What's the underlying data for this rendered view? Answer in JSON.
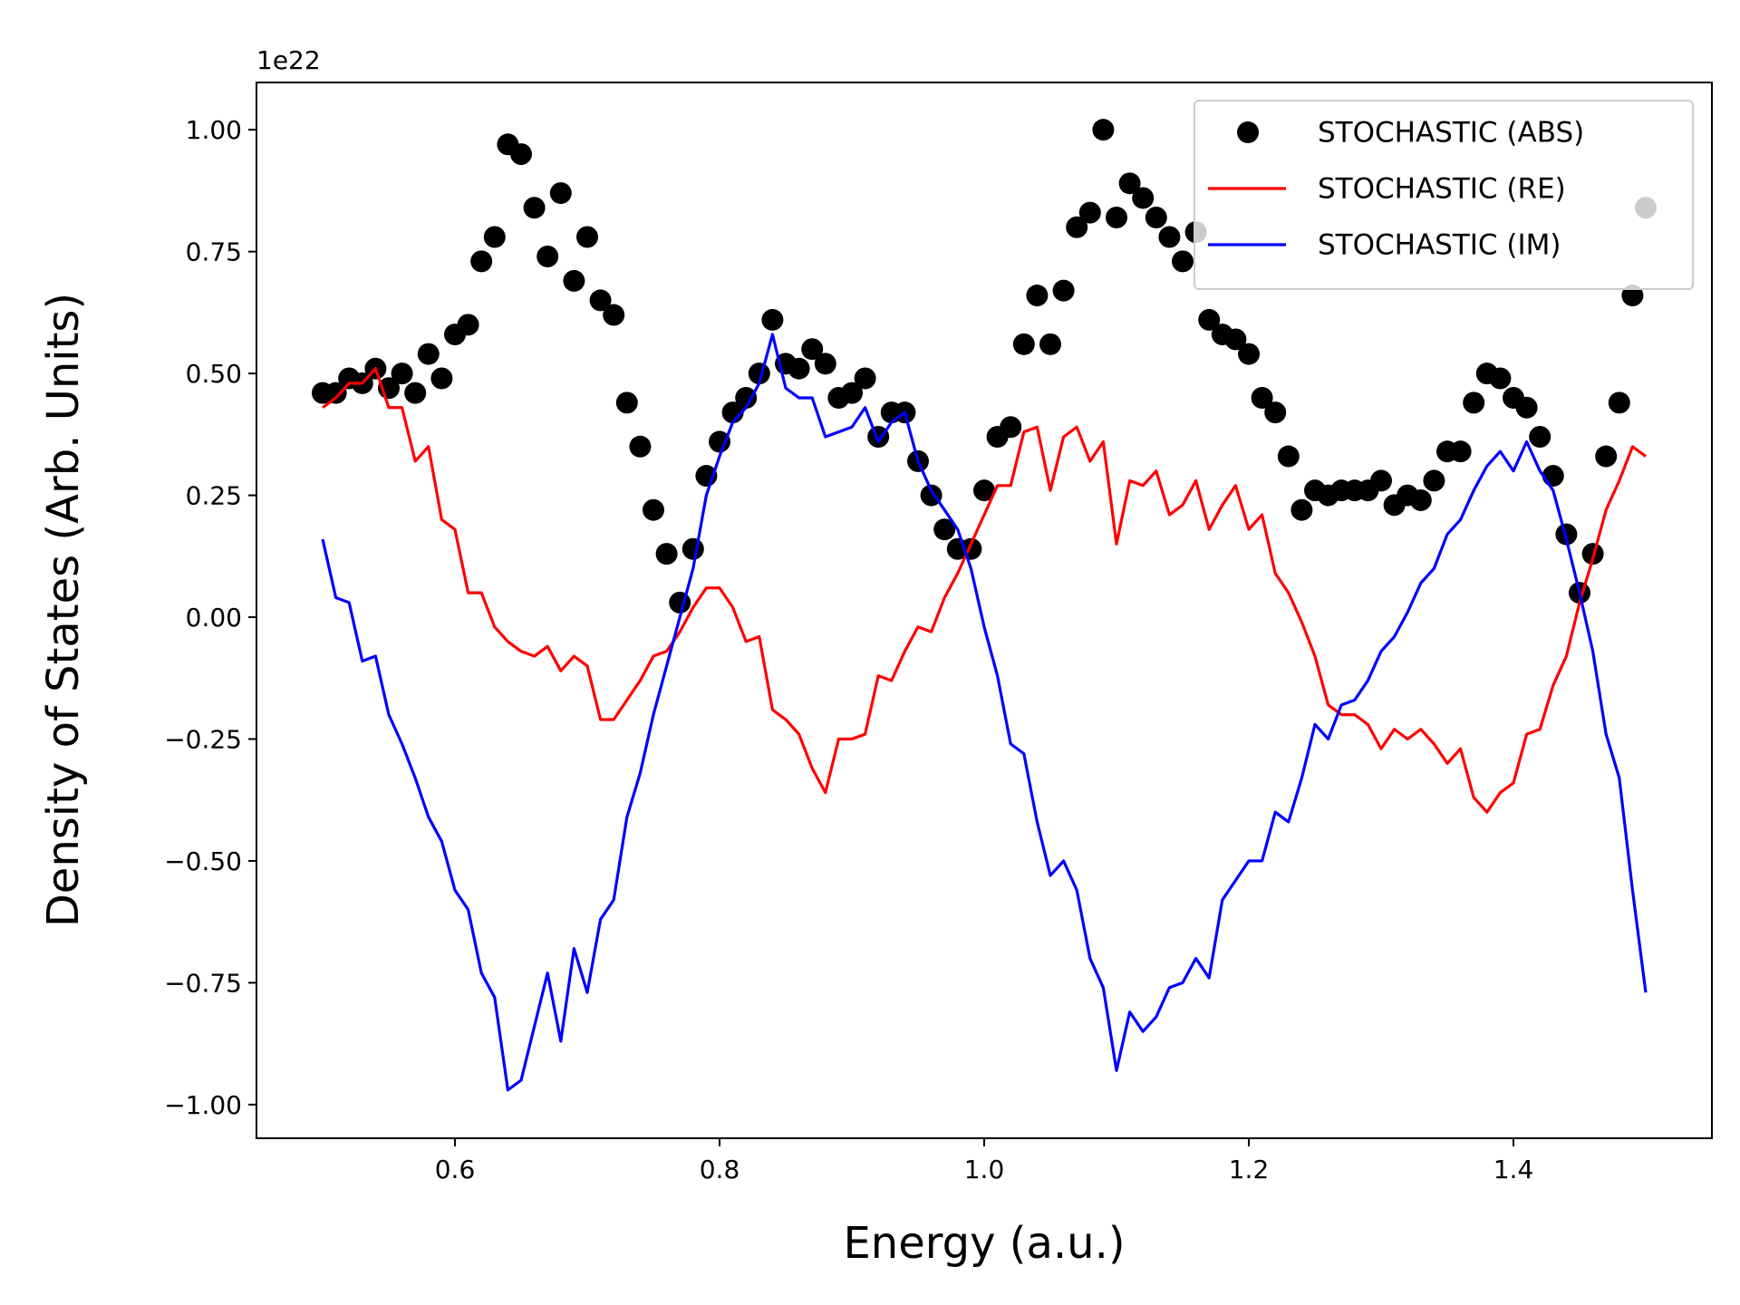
{
  "chart_data": {
    "type": "line",
    "xlabel": "Energy (a.u.)",
    "ylabel": "Density of States (Arb. Units)",
    "y_offset_label": "1e22",
    "x": [
      0.5,
      0.51,
      0.52,
      0.53,
      0.54,
      0.55,
      0.56,
      0.57,
      0.58,
      0.59,
      0.6,
      0.61,
      0.62,
      0.63,
      0.64,
      0.65,
      0.66,
      0.67,
      0.68,
      0.69,
      0.7,
      0.71,
      0.72,
      0.73,
      0.74,
      0.75,
      0.76,
      0.77,
      0.78,
      0.79,
      0.8,
      0.81,
      0.82,
      0.83,
      0.84,
      0.85,
      0.86,
      0.87,
      0.88,
      0.89,
      0.9,
      0.91,
      0.92,
      0.93,
      0.94,
      0.95,
      0.96,
      0.97,
      0.98,
      0.99,
      1.0,
      1.01,
      1.02,
      1.03,
      1.04,
      1.05,
      1.06,
      1.07,
      1.08,
      1.09,
      1.1,
      1.11,
      1.12,
      1.13,
      1.14,
      1.15,
      1.16,
      1.17,
      1.18,
      1.19,
      1.2,
      1.21,
      1.22,
      1.23,
      1.24,
      1.25,
      1.26,
      1.27,
      1.28,
      1.29,
      1.3,
      1.31,
      1.32,
      1.33,
      1.34,
      1.35,
      1.36,
      1.37,
      1.38,
      1.39,
      1.4,
      1.41,
      1.42,
      1.43,
      1.44,
      1.45,
      1.46,
      1.47,
      1.48,
      1.49,
      1.5
    ],
    "series": [
      {
        "name": "STOCHASTIC (ABS)",
        "style": "marker",
        "color": "#000000",
        "values": [
          0.46,
          0.46,
          0.49,
          0.48,
          0.51,
          0.47,
          0.5,
          0.46,
          0.54,
          0.49,
          0.58,
          0.6,
          0.73,
          0.78,
          0.97,
          0.95,
          0.84,
          0.74,
          0.87,
          0.69,
          0.78,
          0.65,
          0.62,
          0.44,
          0.35,
          0.22,
          0.13,
          0.03,
          0.14,
          0.29,
          0.36,
          0.42,
          0.45,
          0.5,
          0.61,
          0.52,
          0.51,
          0.55,
          0.52,
          0.45,
          0.46,
          0.49,
          0.37,
          0.42,
          0.42,
          0.32,
          0.25,
          0.18,
          0.14,
          0.14,
          0.26,
          0.37,
          0.39,
          0.56,
          0.66,
          0.56,
          0.67,
          0.8,
          0.83,
          1.0,
          0.82,
          0.89,
          0.86,
          0.82,
          0.78,
          0.73,
          0.79,
          0.61,
          0.58,
          0.57,
          0.54,
          0.45,
          0.42,
          0.33,
          0.22,
          0.26,
          0.25,
          0.26,
          0.26,
          0.26,
          0.28,
          0.23,
          0.25,
          0.24,
          0.28,
          0.34,
          0.34,
          0.44,
          0.5,
          0.49,
          0.45,
          0.43,
          0.37,
          0.29,
          0.17,
          0.05,
          0.13,
          0.33,
          0.44,
          0.66,
          0.84
        ]
      },
      {
        "name": "STOCHASTIC (RE)",
        "style": "line",
        "color": "#ff0000",
        "values": [
          0.43,
          0.45,
          0.48,
          0.48,
          0.51,
          0.43,
          0.43,
          0.32,
          0.35,
          0.2,
          0.18,
          0.05,
          0.05,
          -0.02,
          -0.05,
          -0.07,
          -0.08,
          -0.06,
          -0.11,
          -0.08,
          -0.1,
          -0.21,
          -0.21,
          -0.17,
          -0.13,
          -0.08,
          -0.07,
          -0.03,
          0.02,
          0.06,
          0.06,
          0.02,
          -0.05,
          -0.04,
          -0.19,
          -0.21,
          -0.24,
          -0.31,
          -0.36,
          -0.25,
          -0.25,
          -0.24,
          -0.12,
          -0.13,
          -0.07,
          -0.02,
          -0.03,
          0.04,
          0.09,
          0.15,
          0.21,
          0.27,
          0.27,
          0.38,
          0.39,
          0.26,
          0.37,
          0.39,
          0.32,
          0.36,
          0.15,
          0.28,
          0.27,
          0.3,
          0.21,
          0.23,
          0.28,
          0.18,
          0.23,
          0.27,
          0.18,
          0.21,
          0.09,
          0.05,
          -0.01,
          -0.08,
          -0.18,
          -0.2,
          -0.2,
          -0.22,
          -0.27,
          -0.23,
          -0.25,
          -0.23,
          -0.26,
          -0.3,
          -0.27,
          -0.37,
          -0.4,
          -0.36,
          -0.34,
          -0.24,
          -0.23,
          -0.14,
          -0.08,
          0.03,
          0.12,
          0.22,
          0.28,
          0.35,
          0.33
        ]
      },
      {
        "name": "STOCHASTIC (IM)",
        "style": "line",
        "color": "#0000ff",
        "values": [
          0.16,
          0.04,
          0.03,
          -0.09,
          -0.08,
          -0.2,
          -0.26,
          -0.33,
          -0.41,
          -0.46,
          -0.56,
          -0.6,
          -0.73,
          -0.78,
          -0.97,
          -0.95,
          -0.84,
          -0.73,
          -0.87,
          -0.68,
          -0.77,
          -0.62,
          -0.58,
          -0.41,
          -0.32,
          -0.2,
          -0.1,
          0.0,
          0.1,
          0.25,
          0.33,
          0.4,
          0.43,
          0.48,
          0.58,
          0.47,
          0.45,
          0.45,
          0.37,
          0.38,
          0.39,
          0.43,
          0.36,
          0.4,
          0.42,
          0.32,
          0.26,
          0.22,
          0.18,
          0.1,
          -0.02,
          -0.12,
          -0.26,
          -0.28,
          -0.42,
          -0.53,
          -0.5,
          -0.56,
          -0.7,
          -0.76,
          -0.93,
          -0.81,
          -0.85,
          -0.82,
          -0.76,
          -0.75,
          -0.7,
          -0.74,
          -0.58,
          -0.54,
          -0.5,
          -0.5,
          -0.4,
          -0.42,
          -0.33,
          -0.22,
          -0.25,
          -0.18,
          -0.17,
          -0.13,
          -0.07,
          -0.04,
          0.01,
          0.07,
          0.1,
          0.17,
          0.2,
          0.26,
          0.31,
          0.34,
          0.3,
          0.36,
          0.3,
          0.26,
          0.16,
          0.05,
          -0.07,
          -0.24,
          -0.33,
          -0.56,
          -0.77
        ]
      }
    ],
    "xlim": [
      0.45,
      1.55
    ],
    "ylim": [
      -1.069,
      1.097
    ],
    "xticks": [
      0.6,
      0.8,
      {
        "value": 1.0,
        "label": "1.0"
      },
      1.2,
      1.4
    ],
    "yticks": [
      {
        "value": -1.0,
        "label": "−1.00"
      },
      {
        "value": -0.75,
        "label": "−0.75"
      },
      {
        "value": -0.5,
        "label": "−0.50"
      },
      {
        "value": -0.25,
        "label": "−0.25"
      },
      {
        "value": 0,
        "label": "0.00"
      },
      0.25,
      {
        "value": 0.5,
        "label": "0.50"
      },
      {
        "value": 0.75,
        "label": "0.75"
      },
      {
        "value": 1.0,
        "label": "1.00"
      }
    ],
    "grid": false,
    "legend": "upper right"
  }
}
